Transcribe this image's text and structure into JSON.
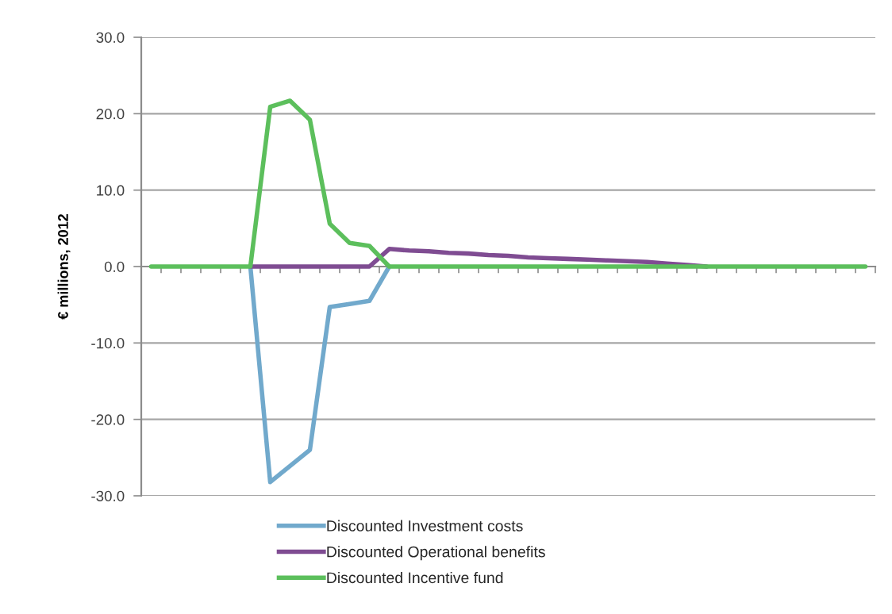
{
  "chart_data": {
    "type": "line",
    "ylabel": "€ millions, 2012",
    "categories": [
      null,
      null,
      null,
      null,
      null,
      null,
      null,
      null,
      null,
      null,
      null,
      null,
      null,
      null,
      null,
      null,
      null,
      null,
      null,
      null,
      null,
      null,
      null,
      null,
      null,
      null,
      null,
      null,
      null,
      null,
      null,
      null,
      null,
      null,
      null,
      null,
      null
    ],
    "series": [
      {
        "name": "Discounted Investment costs",
        "color": "#71a9cc",
        "values": [
          null,
          null,
          null,
          null,
          null,
          0,
          -28.2,
          -26.1,
          -24.0,
          -5.3,
          -4.9,
          -4.5,
          0,
          null,
          null,
          null,
          null,
          null,
          null,
          null,
          null,
          null,
          null,
          null,
          null,
          null,
          null,
          null,
          null,
          null,
          null,
          null,
          null,
          null,
          null,
          null,
          null
        ]
      },
      {
        "name": "Discounted Operational benefits",
        "color": "#7f4c92",
        "values": [
          null,
          null,
          null,
          null,
          null,
          0,
          0,
          0,
          0,
          0,
          0,
          0,
          2.3,
          2.1,
          2.0,
          1.8,
          1.7,
          1.5,
          1.4,
          1.2,
          1.1,
          1.0,
          0.9,
          0.8,
          0.7,
          0.6,
          0.4,
          0.2,
          0,
          null,
          null,
          null,
          null,
          null,
          null,
          null,
          null
        ]
      },
      {
        "name": "Discounted Incentive fund",
        "color": "#5cbf5c",
        "values": [
          0,
          0,
          0,
          0,
          0,
          0,
          20.9,
          21.7,
          19.2,
          5.6,
          3.1,
          2.7,
          0,
          0,
          0,
          0,
          0,
          0,
          0,
          0,
          0,
          0,
          0,
          0,
          0,
          0,
          0,
          0,
          0,
          0,
          0,
          0,
          0,
          0,
          0,
          0,
          0
        ]
      }
    ],
    "ylim": [
      -30,
      30
    ],
    "yticks": [
      {
        "value": 30,
        "label": "30.0"
      },
      {
        "value": 20,
        "label": "20.0"
      },
      {
        "value": 10,
        "label": "10.0"
      },
      {
        "value": 0,
        "label": "0.0"
      },
      {
        "value": -10,
        "label": "-10.0"
      },
      {
        "value": -20,
        "label": "-20.0"
      },
      {
        "value": -30,
        "label": "-30.0"
      }
    ],
    "grid": "y",
    "legend": "bottom",
    "tick_labels": "y",
    "marker": "none",
    "line_style": "solid"
  }
}
